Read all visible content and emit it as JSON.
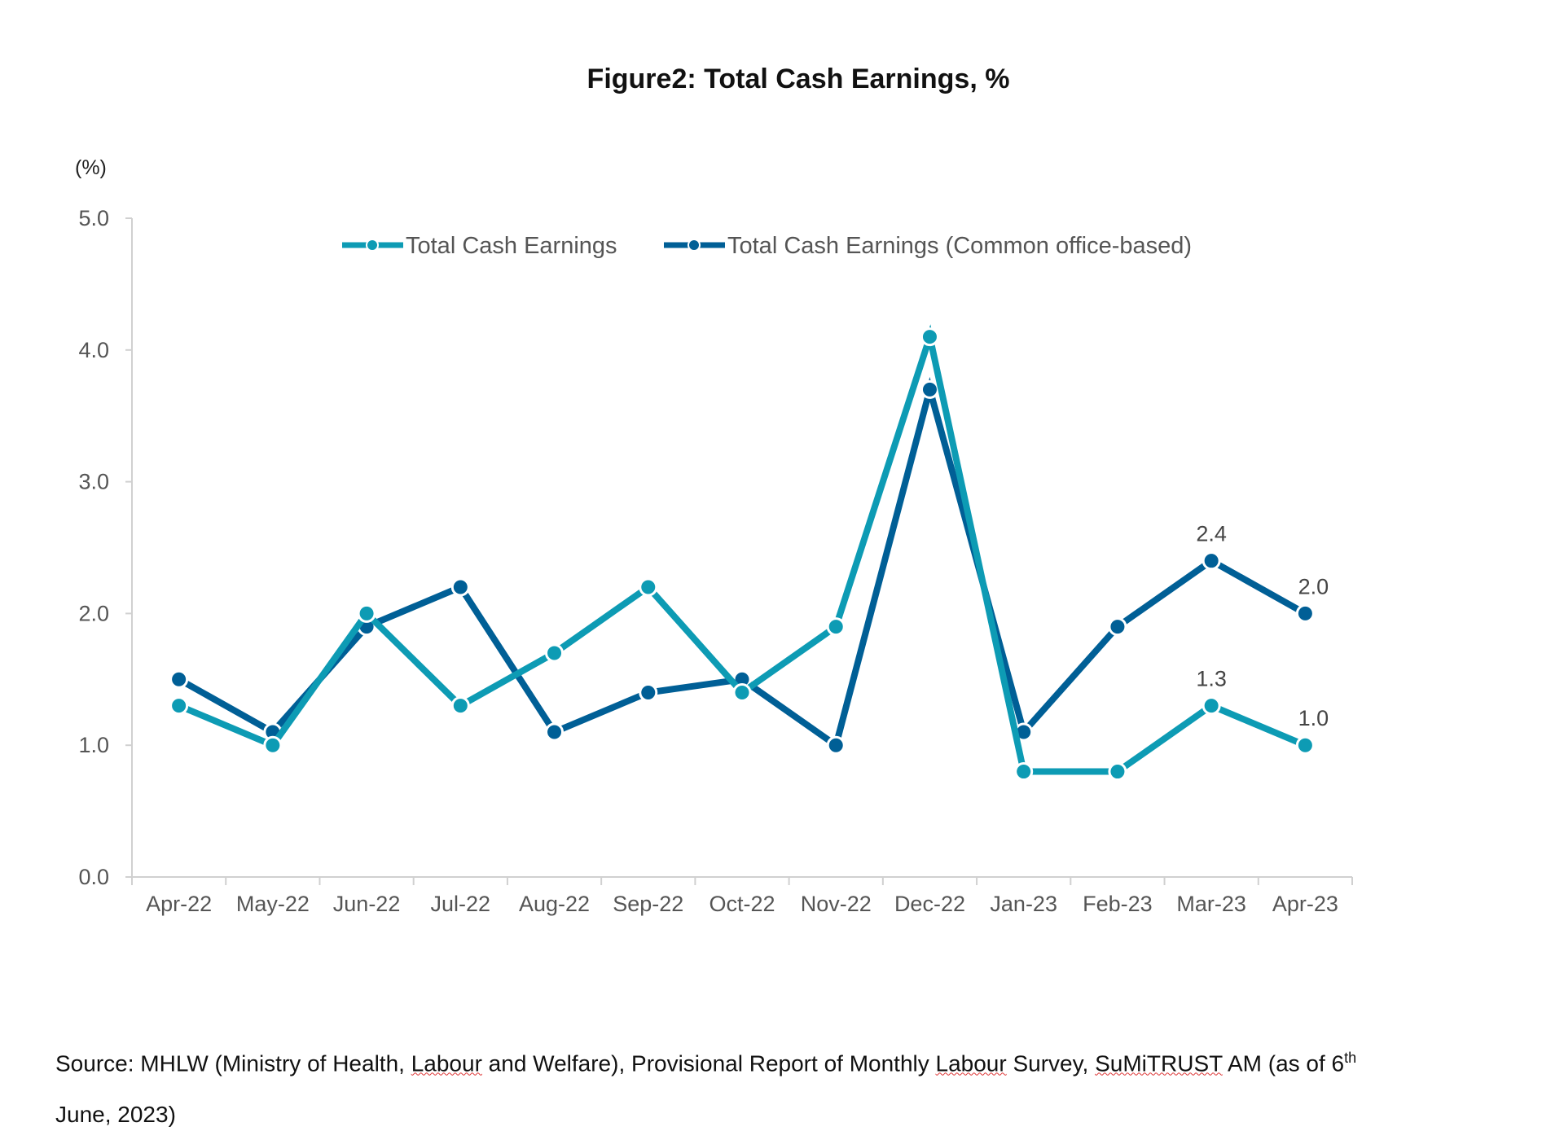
{
  "chart_data": {
    "type": "line",
    "title": "Figure2: Total Cash Earnings, %",
    "ylabel": "(%)",
    "xlabel": "",
    "ylim": [
      0,
      5
    ],
    "yticks": [
      "0.0",
      "1.0",
      "2.0",
      "3.0",
      "4.0",
      "5.0"
    ],
    "grid": false,
    "legend_position": "top-center",
    "categories": [
      "Apr-22",
      "May-22",
      "Jun-22",
      "Jul-22",
      "Aug-22",
      "Sep-22",
      "Oct-22",
      "Nov-22",
      "Dec-22",
      "Jan-23",
      "Feb-23",
      "Mar-23",
      "Apr-23"
    ],
    "series": [
      {
        "name": "Total Cash Earnings",
        "color": "#0d9bb4",
        "values": [
          1.3,
          1.0,
          2.0,
          1.3,
          1.7,
          2.2,
          1.4,
          1.9,
          4.1,
          0.8,
          0.8,
          1.3,
          1.0
        ],
        "data_labels": {
          "11": "1.3",
          "12": "1.0"
        }
      },
      {
        "name": "Total Cash Earnings (Common office-based)",
        "color": "#005f96",
        "values": [
          1.5,
          1.1,
          1.9,
          2.2,
          1.1,
          1.4,
          1.5,
          1.0,
          3.7,
          1.1,
          1.9,
          2.4,
          2.0
        ],
        "data_labels": {
          "11": "2.4",
          "12": "2.0"
        }
      }
    ]
  },
  "source": {
    "prefix": "Source: MHLW (Ministry of Health, ",
    "w1": "Labour",
    "mid1": " and Welfare), Provisional Report of Monthly ",
    "w2": "Labour",
    "mid2": " Survey, ",
    "w3": "SuMiTRUST",
    "mid3": " AM (as of 6",
    "sup": "th",
    "line2": "June, 2023)"
  }
}
